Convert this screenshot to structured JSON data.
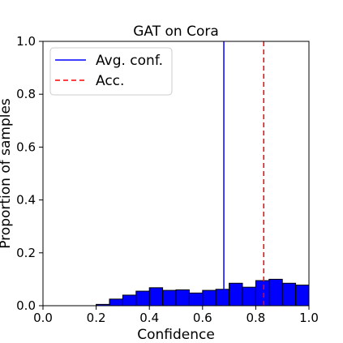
{
  "chart_data": {
    "type": "bar",
    "title": "GAT on Cora",
    "xlabel": "Confidence",
    "ylabel": "Proportion of samples",
    "xlim": [
      0.0,
      1.0
    ],
    "ylim": [
      0.0,
      1.0
    ],
    "xticks": [
      "0.0",
      "0.2",
      "0.4",
      "0.6",
      "0.8",
      "1.0"
    ],
    "yticks": [
      "0.0",
      "0.2",
      "0.4",
      "0.6",
      "0.8",
      "1.0"
    ],
    "bin_width": 0.05,
    "bins": [
      {
        "x": 0.2,
        "value": 0.005
      },
      {
        "x": 0.25,
        "value": 0.025
      },
      {
        "x": 0.3,
        "value": 0.04
      },
      {
        "x": 0.35,
        "value": 0.055
      },
      {
        "x": 0.4,
        "value": 0.068
      },
      {
        "x": 0.45,
        "value": 0.058
      },
      {
        "x": 0.5,
        "value": 0.06
      },
      {
        "x": 0.55,
        "value": 0.048
      },
      {
        "x": 0.6,
        "value": 0.058
      },
      {
        "x": 0.65,
        "value": 0.062
      },
      {
        "x": 0.7,
        "value": 0.085
      },
      {
        "x": 0.75,
        "value": 0.07
      },
      {
        "x": 0.8,
        "value": 0.095
      },
      {
        "x": 0.85,
        "value": 0.1
      },
      {
        "x": 0.9,
        "value": 0.085
      },
      {
        "x": 0.95,
        "value": 0.078
      }
    ],
    "bar_color": "#0000ff",
    "reference_lines": [
      {
        "name": "Avg. conf.",
        "x": 0.68,
        "color": "#0000ff",
        "style": "solid"
      },
      {
        "name": "Acc.",
        "x": 0.83,
        "color": "#ff0000",
        "style": "dashed"
      }
    ],
    "legend": {
      "position": "top-left",
      "entries": [
        "Avg. conf.",
        "Acc."
      ]
    },
    "grid": false
  }
}
